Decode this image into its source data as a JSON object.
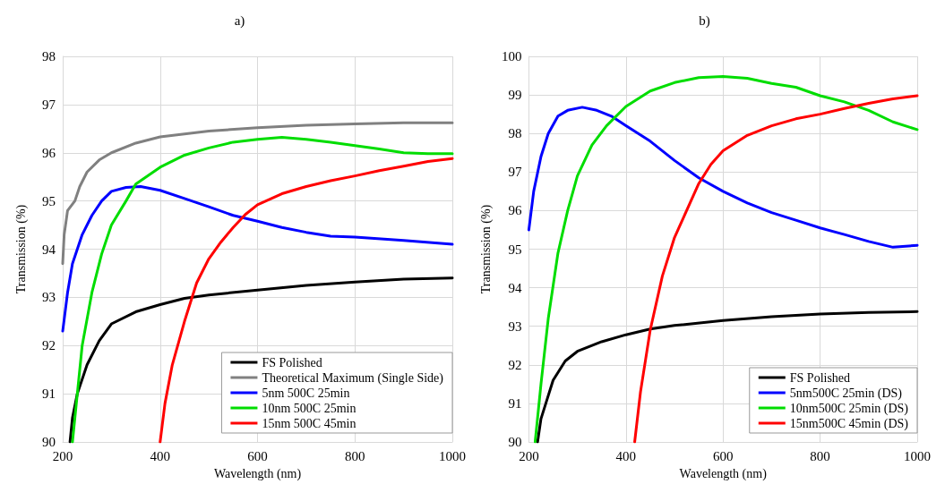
{
  "chart_data": [
    {
      "type": "line",
      "title": "a)",
      "xlabel": "Wavelength (nm)",
      "ylabel": "Transmission (%)",
      "xlim": [
        200,
        1000
      ],
      "xticks": [
        200,
        400,
        600,
        800,
        1000
      ],
      "ylim": [
        90,
        98
      ],
      "yticks": [
        90,
        91,
        92,
        93,
        94,
        95,
        96,
        97,
        98
      ],
      "grid": true,
      "legend": "bottom right",
      "marker": "none",
      "line_style": "solid",
      "series": [
        {
          "name": "FS Polished",
          "color": "#000000",
          "x": [
            215,
            220,
            230,
            250,
            275,
            300,
            350,
            400,
            450,
            500,
            600,
            700,
            800,
            900,
            1000
          ],
          "values": [
            90,
            90.5,
            91.0,
            91.6,
            92.1,
            92.45,
            92.7,
            92.85,
            92.98,
            93.05,
            93.15,
            93.25,
            93.32,
            93.38,
            93.4
          ]
        },
        {
          "name": "Theoretical Maximum (Single Side)",
          "color": "#808080",
          "x": [
            200,
            203,
            210,
            225,
            235,
            250,
            275,
            300,
            350,
            400,
            500,
            600,
            700,
            800,
            900,
            1000
          ],
          "values": [
            93.7,
            94.3,
            94.8,
            95.0,
            95.3,
            95.6,
            95.85,
            96.0,
            96.2,
            96.33,
            96.45,
            96.52,
            96.57,
            96.6,
            96.62,
            96.62
          ]
        },
        {
          "name": "5nm 500C 25min",
          "color": "#0000ff",
          "x": [
            200,
            210,
            220,
            240,
            260,
            280,
            300,
            330,
            360,
            400,
            450,
            500,
            550,
            600,
            650,
            700,
            750,
            800,
            900,
            1000
          ],
          "values": [
            92.3,
            93.1,
            93.7,
            94.3,
            94.7,
            95.0,
            95.2,
            95.28,
            95.3,
            95.22,
            95.05,
            94.88,
            94.7,
            94.58,
            94.45,
            94.35,
            94.27,
            94.25,
            94.18,
            94.1
          ]
        },
        {
          "name": "10nm 500C 25min",
          "color": "#00dd00",
          "x": [
            220,
            230,
            240,
            260,
            280,
            300,
            330,
            350,
            400,
            450,
            500,
            550,
            600,
            650,
            700,
            750,
            800,
            850,
            900,
            950,
            1000
          ],
          "values": [
            90,
            91.0,
            92.0,
            93.1,
            93.9,
            94.5,
            95.0,
            95.35,
            95.7,
            95.95,
            96.1,
            96.22,
            96.28,
            96.32,
            96.28,
            96.22,
            96.15,
            96.08,
            96.0,
            95.98,
            95.98
          ]
        },
        {
          "name": "15nm 500C 45min",
          "color": "#ff0000",
          "x": [
            400,
            410,
            425,
            450,
            475,
            500,
            525,
            550,
            575,
            600,
            650,
            700,
            750,
            800,
            850,
            900,
            950,
            1000
          ],
          "values": [
            90,
            90.8,
            91.6,
            92.5,
            93.3,
            93.8,
            94.15,
            94.45,
            94.72,
            94.92,
            95.15,
            95.3,
            95.42,
            95.52,
            95.63,
            95.72,
            95.82,
            95.88
          ]
        }
      ]
    },
    {
      "type": "line",
      "title": "b)",
      "xlabel": "Wavelength (nm)",
      "ylabel": "Transmission (%)",
      "xlim": [
        200,
        1000
      ],
      "xticks": [
        200,
        400,
        600,
        800,
        1000
      ],
      "ylim": [
        90,
        100
      ],
      "yticks": [
        90,
        91,
        92,
        93,
        94,
        95,
        96,
        97,
        98,
        99,
        100
      ],
      "grid": true,
      "legend": "bottom right",
      "marker": "none",
      "line_style": "solid",
      "series": [
        {
          "name": "FS Polished",
          "color": "#000000",
          "x": [
            218,
            225,
            235,
            250,
            275,
            300,
            350,
            400,
            450,
            500,
            600,
            700,
            800,
            900,
            1000
          ],
          "values": [
            90,
            90.6,
            91.0,
            91.6,
            92.1,
            92.35,
            92.6,
            92.78,
            92.93,
            93.02,
            93.15,
            93.25,
            93.32,
            93.36,
            93.38
          ]
        },
        {
          "name": "5nm500C 25min (DS)",
          "color": "#0000ff",
          "x": [
            200,
            210,
            225,
            240,
            260,
            280,
            310,
            340,
            370,
            400,
            450,
            500,
            550,
            600,
            650,
            700,
            750,
            800,
            850,
            900,
            950,
            1000
          ],
          "values": [
            95.5,
            96.5,
            97.4,
            98.0,
            98.45,
            98.6,
            98.68,
            98.6,
            98.45,
            98.2,
            97.8,
            97.3,
            96.85,
            96.5,
            96.2,
            95.95,
            95.75,
            95.55,
            95.38,
            95.2,
            95.05,
            95.1
          ]
        },
        {
          "name": "10nm500C 25min (DS)",
          "color": "#00dd00",
          "x": [
            213,
            225,
            240,
            260,
            280,
            300,
            330,
            360,
            400,
            450,
            500,
            550,
            600,
            650,
            700,
            750,
            800,
            850,
            900,
            950,
            1000
          ],
          "values": [
            90,
            91.5,
            93.2,
            94.9,
            96.0,
            96.9,
            97.7,
            98.2,
            98.7,
            99.1,
            99.32,
            99.45,
            99.48,
            99.43,
            99.3,
            99.2,
            98.98,
            98.82,
            98.6,
            98.3,
            98.1
          ]
        },
        {
          "name": "15nm500C 45min (DS)",
          "color": "#ff0000",
          "x": [
            418,
            430,
            450,
            475,
            500,
            525,
            550,
            575,
            600,
            650,
            700,
            750,
            800,
            850,
            900,
            950,
            1000
          ],
          "values": [
            90,
            91.3,
            92.9,
            94.3,
            95.3,
            96.0,
            96.7,
            97.2,
            97.55,
            97.95,
            98.2,
            98.38,
            98.5,
            98.65,
            98.78,
            98.9,
            98.98
          ]
        }
      ]
    }
  ]
}
